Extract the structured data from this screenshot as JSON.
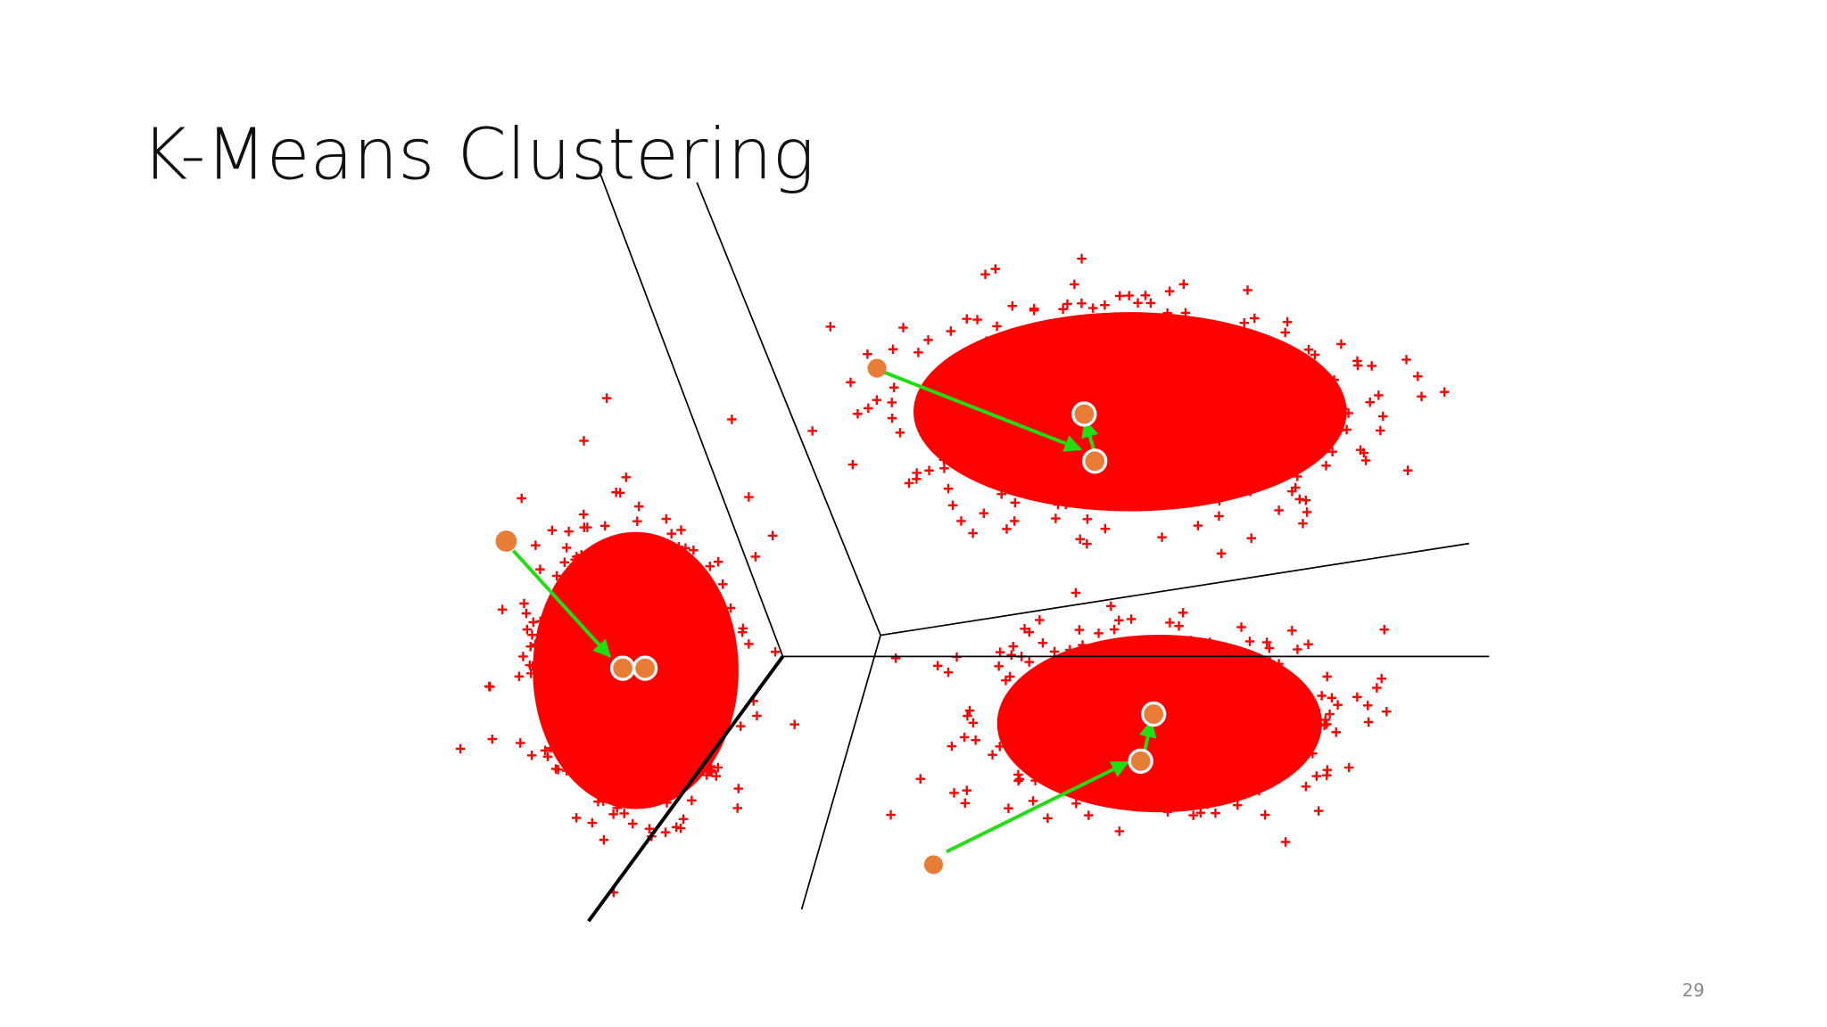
{
  "header": {
    "title": "K-Means Clustering"
  },
  "footer": {
    "page_number": "29"
  }
}
